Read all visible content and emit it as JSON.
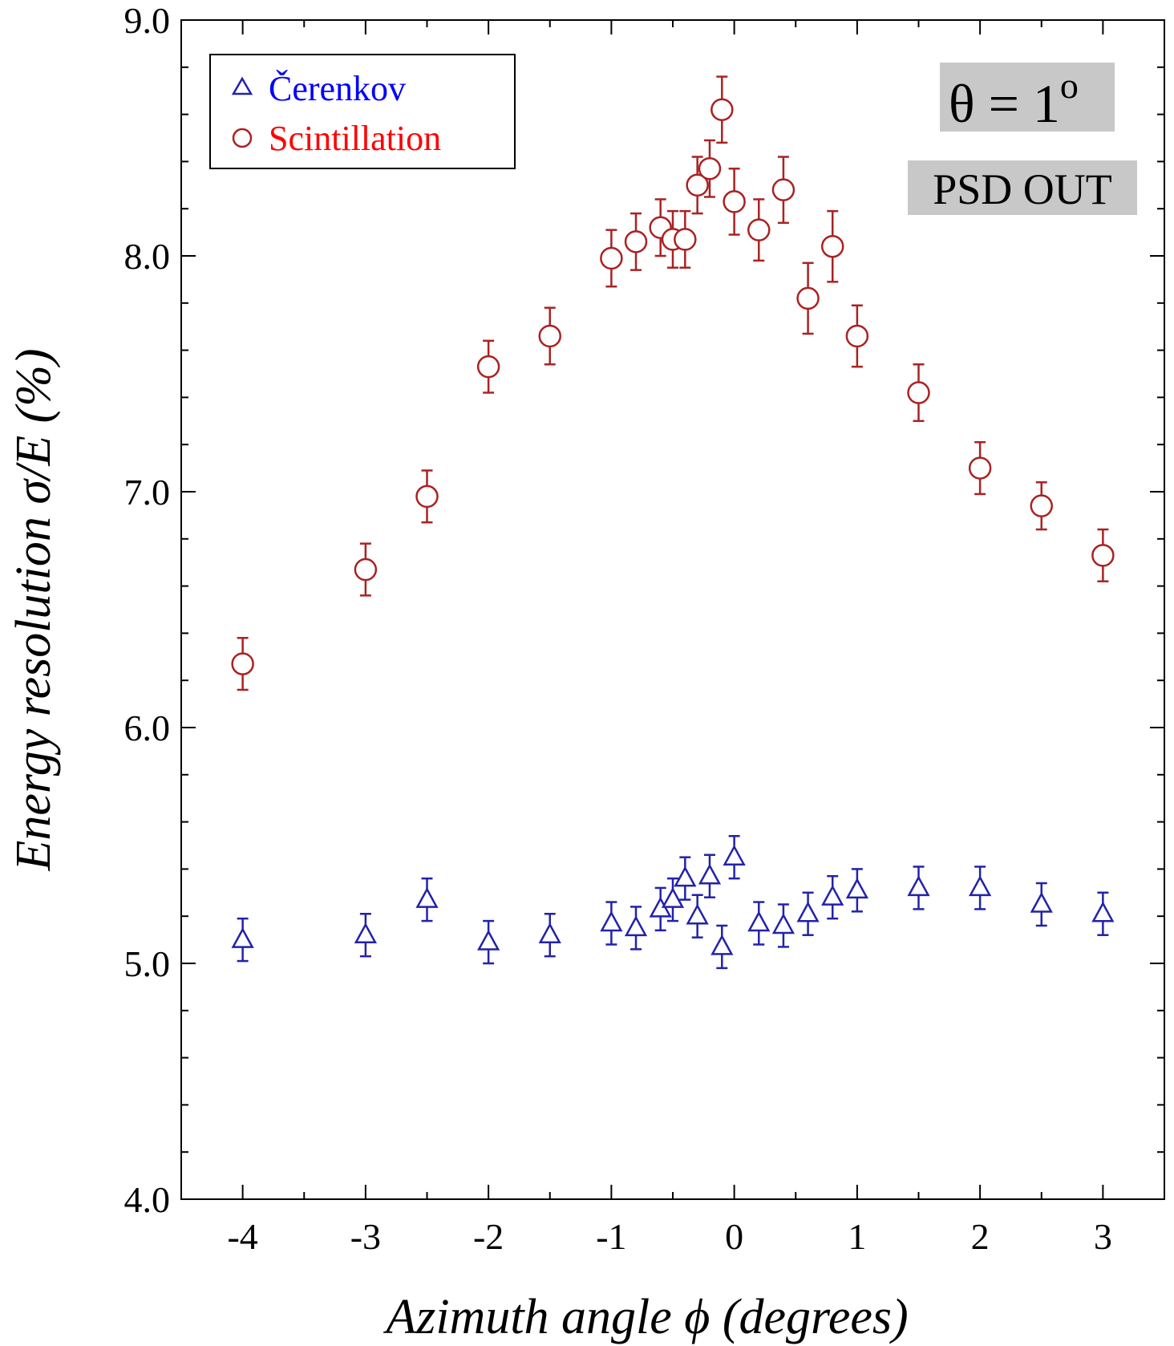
{
  "chart_data": {
    "type": "scatter",
    "xlabel": "Azimuth angle ϕ (degrees)",
    "ylabel": "Energy resolution σ/E (%)",
    "xlim": [
      -4.5,
      3.5
    ],
    "ylim": [
      4.0,
      9.0
    ],
    "x_ticks": [
      -4,
      -3,
      -2,
      -1,
      0,
      1,
      2,
      3
    ],
    "x_tick_labels": [
      "-4",
      "-3",
      "-2",
      "-1",
      "0",
      "1",
      "2",
      "3"
    ],
    "y_ticks": [
      4.0,
      5.0,
      6.0,
      7.0,
      8.0,
      9.0
    ],
    "y_tick_labels": [
      "4.0",
      "5.0",
      "6.0",
      "7.0",
      "8.0",
      "9.0"
    ],
    "grid": false,
    "legend_position": "top-left",
    "annotations": [
      {
        "text": "θ = 1",
        "superscript": "o"
      },
      {
        "text": "PSD OUT"
      }
    ],
    "series": [
      {
        "name": "Čerenkov",
        "marker": "triangle",
        "color": "#2222aa",
        "label_color": "#0000ff",
        "x": [
          -4,
          -3,
          -2.5,
          -2,
          -1.5,
          -1,
          -0.8,
          -0.6,
          -0.5,
          -0.4,
          -0.3,
          -0.2,
          -0.1,
          0,
          0.2,
          0.4,
          0.6,
          0.8,
          1,
          1.5,
          2,
          2.5,
          3
        ],
        "y": [
          5.1,
          5.12,
          5.27,
          5.09,
          5.12,
          5.17,
          5.15,
          5.23,
          5.27,
          5.36,
          5.2,
          5.37,
          5.07,
          5.45,
          5.17,
          5.16,
          5.21,
          5.28,
          5.31,
          5.32,
          5.32,
          5.25,
          5.21
        ],
        "err": [
          0.09,
          0.09,
          0.09,
          0.09,
          0.09,
          0.09,
          0.09,
          0.09,
          0.09,
          0.09,
          0.09,
          0.09,
          0.09,
          0.09,
          0.09,
          0.09,
          0.09,
          0.09,
          0.09,
          0.09,
          0.09,
          0.09,
          0.09
        ]
      },
      {
        "name": "Scintillation",
        "marker": "circle",
        "color": "#aa2222",
        "label_color": "#ff0000",
        "x": [
          -4,
          -3,
          -2.5,
          -2,
          -1.5,
          -1,
          -0.8,
          -0.6,
          -0.5,
          -0.4,
          -0.3,
          -0.2,
          -0.1,
          0,
          0.2,
          0.4,
          0.6,
          0.8,
          1,
          1.5,
          2,
          2.5,
          3
        ],
        "y": [
          6.27,
          6.67,
          6.98,
          7.53,
          7.66,
          7.99,
          8.06,
          8.12,
          8.07,
          8.07,
          8.3,
          8.37,
          8.62,
          8.23,
          8.11,
          8.28,
          7.82,
          8.04,
          7.66,
          7.42,
          7.1,
          6.94,
          6.73
        ],
        "err": [
          0.11,
          0.11,
          0.11,
          0.11,
          0.12,
          0.12,
          0.12,
          0.12,
          0.12,
          0.12,
          0.12,
          0.12,
          0.14,
          0.14,
          0.13,
          0.14,
          0.15,
          0.15,
          0.13,
          0.12,
          0.11,
          0.1,
          0.11
        ]
      }
    ]
  }
}
